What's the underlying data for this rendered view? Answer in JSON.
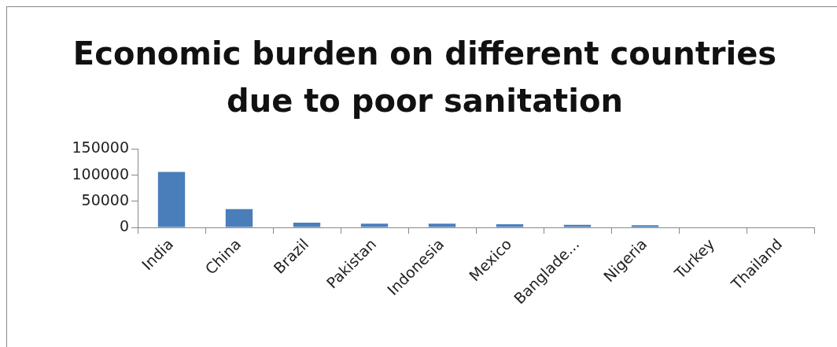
{
  "chart_data": {
    "type": "bar",
    "title": "Economic burden on different countries due to poor sanitation",
    "categories": [
      "India",
      "China",
      "Brazil",
      "Pakistan",
      "Indonesia",
      "Mexico",
      "Banglade...",
      "Nigeria",
      "Turkey",
      "Thailand"
    ],
    "values": [
      106000,
      35000,
      9000,
      7000,
      7000,
      6000,
      5000,
      4000,
      null,
      null
    ],
    "color": "#4a7ebb",
    "ylim": [
      0,
      150000
    ],
    "yticks": [
      0,
      50000,
      100000,
      150000
    ],
    "grid": false,
    "legend": false
  }
}
